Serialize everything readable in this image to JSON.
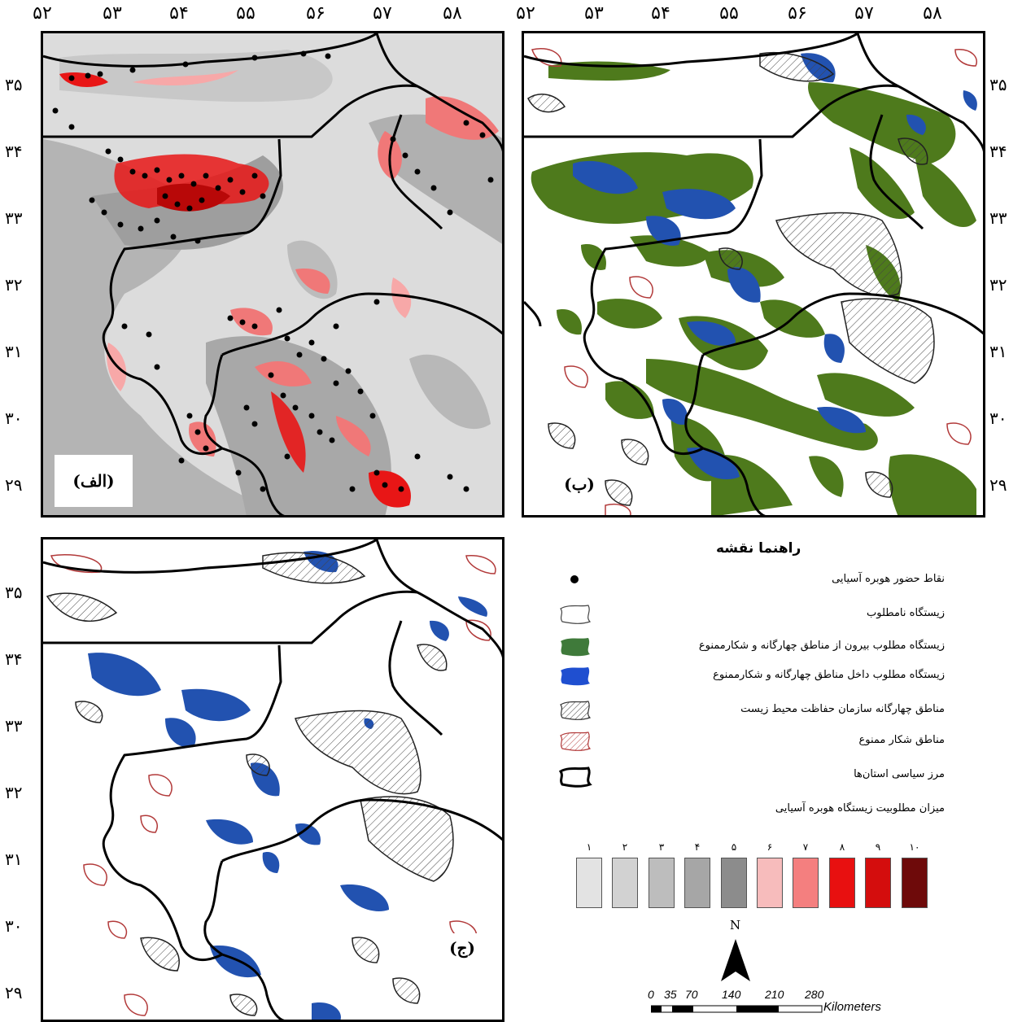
{
  "top_ticks_left": [
    "۵۲",
    "۵۳",
    "۵۴",
    "۵۵",
    "۵۶",
    "۵۷",
    "۵۸"
  ],
  "top_ticks_right": [
    "۵۲",
    "۵۳",
    "۵۴",
    "۵۵",
    "۵۶",
    "۵۷",
    "۵۸"
  ],
  "lat_ticks_a": [
    "۳۵",
    "۳۴",
    "۳۳",
    "۳۲",
    "۳۱",
    "۳۰",
    "۲۹"
  ],
  "lat_ticks_b": [
    "۳۵",
    "۳۴",
    "۳۳",
    "۳۲",
    "۳۱",
    "۳۰",
    "۲۹"
  ],
  "lat_ticks_c": [
    "۳۵",
    "۳۴",
    "۳۳",
    "۳۲",
    "۳۱",
    "۳۰",
    "۲۹"
  ],
  "panel_labels": {
    "a": "(الف)",
    "b": "(ب)",
    "c": "(ج)"
  },
  "legend": {
    "title": "راهنما نقشه",
    "items": [
      "نقاط حضور هوبره آسیایی",
      "زیستگاه نامطلوب",
      "زیستگاه مطلوب بیرون از مناطق چهارگانه و شکارممنوع",
      "زیستگاه مطلوب داخل مناطق چهارگانه و شکارممنوع",
      "مناطق چهارگانه سازمان حفاظت محیط زیست",
      "مناطق شکار ممنوع",
      "مرز سیاسی استان‌ها",
      "میزان مطلوبیت  زیستگاه  هوبره آسیایی"
    ]
  },
  "suitability_scale": {
    "labels": [
      "۱",
      "۲",
      "۳",
      "۴",
      "۵",
      "۶",
      "۷",
      "۸",
      "۹",
      "۱۰"
    ],
    "colors": [
      "#e3e3e3",
      "#d2d2d2",
      "#bdbdbd",
      "#a6a6a6",
      "#8c8c8c",
      "#f7bcbc",
      "#f47f7f",
      "#e81010",
      "#d40d0d",
      "#6e0a0a"
    ]
  },
  "north_label": "N",
  "scale_bar": {
    "ticks": [
      "0",
      "35",
      "70",
      "140",
      "210",
      "280"
    ],
    "unit": "Kilometers"
  },
  "colors": {
    "suitable_outside": "#4e7a1c",
    "suitable_inside": "#2252b0",
    "hunting_ban_outline": "#b23a3a",
    "boundary": "#000000",
    "presence_point": "#000000"
  }
}
